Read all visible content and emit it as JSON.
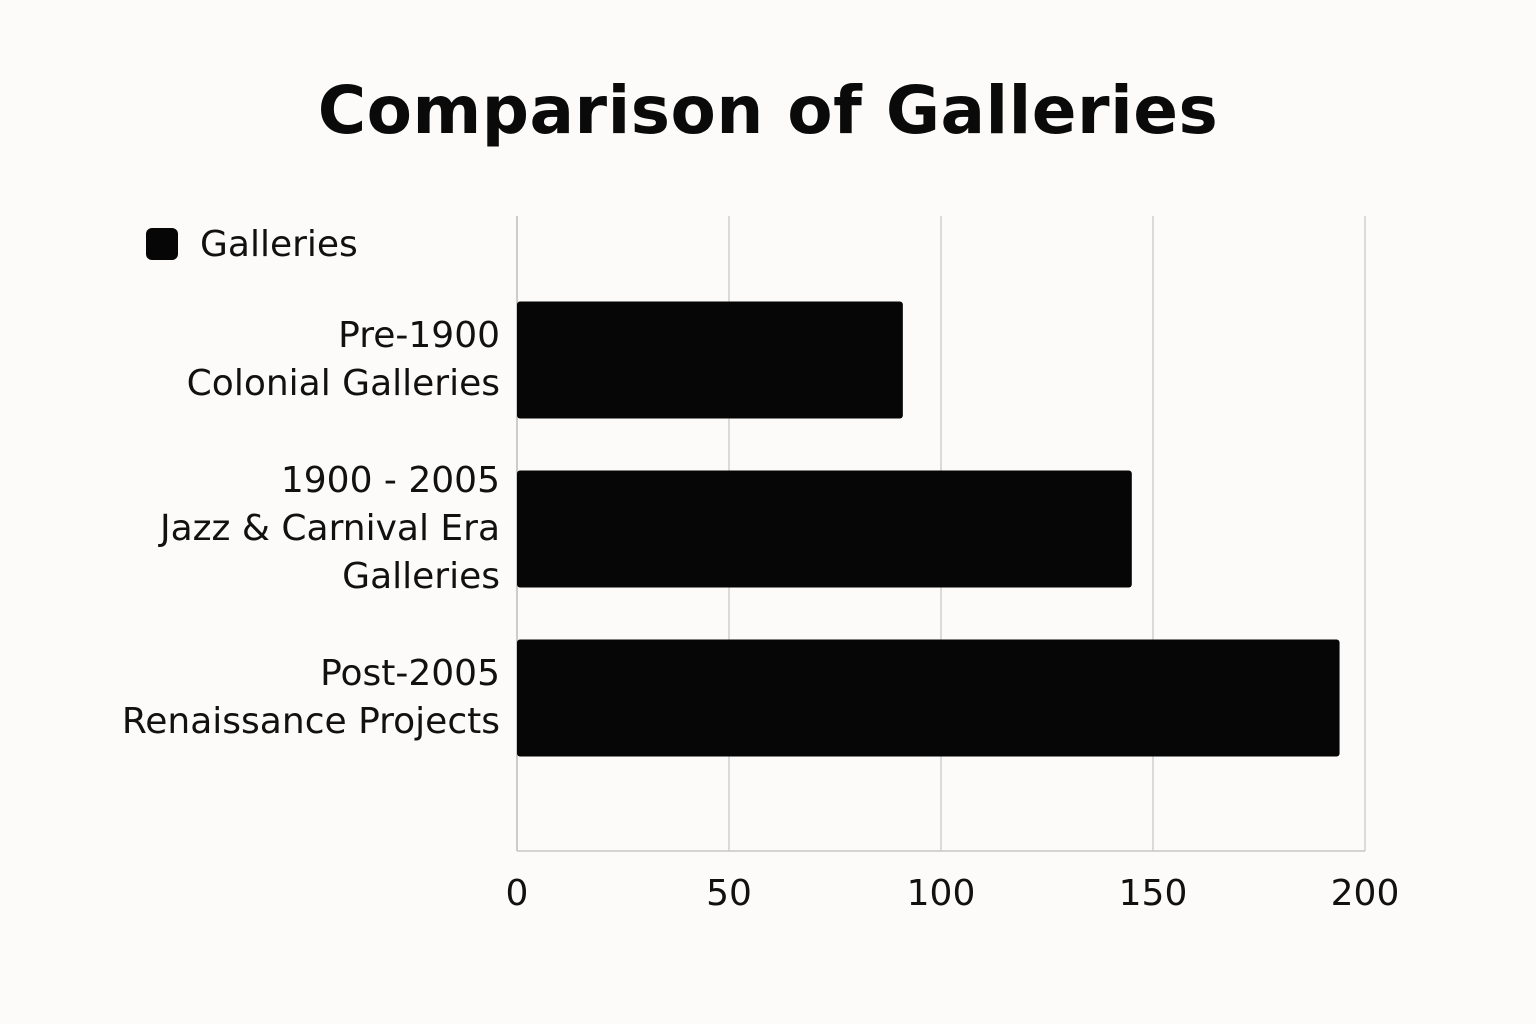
{
  "chart_data": {
    "type": "bar",
    "orientation": "horizontal",
    "title": "Comparison of Galleries",
    "xlabel": "",
    "ylabel": "",
    "categories": [
      "Pre-1900\nColonial Galleries",
      "1900 - 2005\nJazz & Carnival Era\nGalleries",
      "Post-2005\nRenaissance Projects"
    ],
    "series": [
      {
        "name": "Galleries",
        "values": [
          91,
          145,
          194
        ],
        "color": "#060606"
      }
    ],
    "xlim": [
      0,
      200
    ],
    "xticks": [
      0,
      50,
      100,
      150,
      200
    ],
    "xtick_labels": [
      "0",
      "50",
      "100",
      "150",
      "200"
    ],
    "grid": "vertical",
    "legend_position": "top-left"
  }
}
